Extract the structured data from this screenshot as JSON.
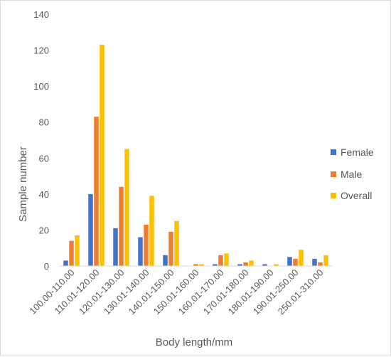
{
  "chart_data": {
    "type": "bar",
    "title": "",
    "xlabel": "Body length/mm",
    "ylabel": "Sample number",
    "ylim": [
      0,
      140
    ],
    "yticks": [
      0,
      20,
      40,
      60,
      80,
      100,
      120,
      140
    ],
    "grid": false,
    "legend_position": "right",
    "categories": [
      "100.00-110.00",
      "110.01-120.00",
      "120.01-130.00",
      "130.01-140.00",
      "140.01-150.00",
      "150.01-160.00",
      "160.01-170.00",
      "170.01-180.00",
      "180.01-190.00",
      "190.01-250.00",
      "250.01-310.00"
    ],
    "series": [
      {
        "name": "Female",
        "color": "#4472c4",
        "values": [
          3,
          40,
          21,
          16,
          6,
          0,
          1,
          1,
          1,
          5,
          4
        ]
      },
      {
        "name": "Male",
        "color": "#ed7d31",
        "values": [
          14,
          83,
          44,
          23,
          19,
          1,
          6,
          2,
          0,
          4,
          2
        ]
      },
      {
        "name": "Overall",
        "color": "#ffc000",
        "values": [
          17,
          123,
          65,
          39,
          25,
          1,
          7,
          3,
          1,
          9,
          6
        ]
      }
    ]
  }
}
